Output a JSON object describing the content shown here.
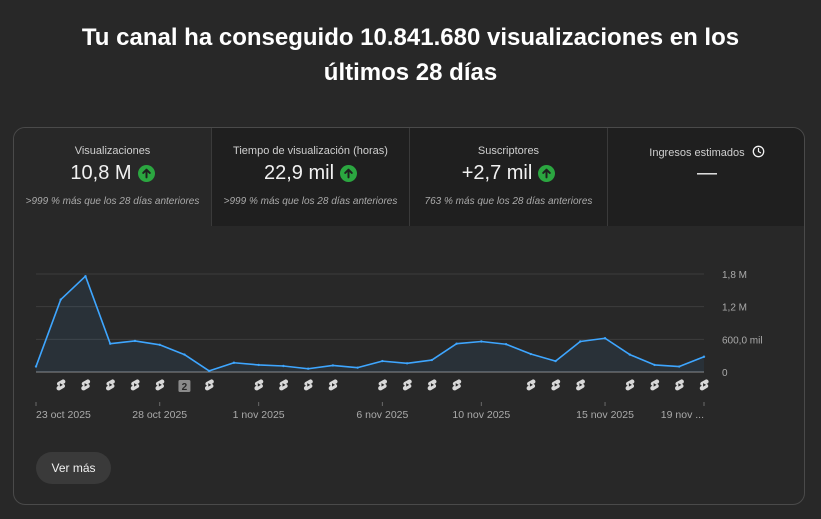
{
  "headline": {
    "line1": "Tu canal ha conseguido 10.841.680 visualizaciones en los",
    "line2": "últimos 28 días"
  },
  "tabs": [
    {
      "label": "Visualizaciones",
      "value": "10,8 M",
      "trend": "up",
      "sub": ">999 % más que los 28 días anteriores"
    },
    {
      "label": "Tiempo de visualización (horas)",
      "value": "22,9 mil",
      "trend": "up",
      "sub": ">999 % más que los 28 días anteriores"
    },
    {
      "label": "Suscriptores",
      "value": "+2,7 mil",
      "trend": "up",
      "sub": "763 % más que los 28 días anteriores"
    },
    {
      "label": "Ingresos estimados",
      "value": "—",
      "trend": "none",
      "sub": ""
    }
  ],
  "chart_data": {
    "type": "area",
    "x": [
      "23 oct 2025",
      "24 oct",
      "25 oct",
      "26 oct",
      "27 oct",
      "28 oct 2025",
      "29 oct",
      "30 oct",
      "31 oct",
      "1 nov 2025",
      "2 nov",
      "3 nov",
      "4 nov",
      "5 nov",
      "6 nov 2025",
      "7 nov",
      "8 nov",
      "9 nov",
      "10 nov 2025",
      "11 nov",
      "12 nov",
      "13 nov",
      "14 nov",
      "15 nov 2025",
      "16 nov",
      "17 nov",
      "18 nov",
      "19 nov"
    ],
    "values": [
      100000,
      1330000,
      1760000,
      520000,
      570000,
      500000,
      320000,
      20000,
      170000,
      130000,
      110000,
      60000,
      120000,
      80000,
      200000,
      160000,
      220000,
      520000,
      560000,
      510000,
      330000,
      200000,
      560000,
      620000,
      320000,
      130000,
      100000,
      280000
    ],
    "ylim": [
      0,
      1800000
    ],
    "yticks": [
      {
        "value": 1800000,
        "label": "1,8 M"
      },
      {
        "value": 1200000,
        "label": "1,2 M"
      },
      {
        "value": 600000,
        "label": "600,0 mil"
      },
      {
        "value": 0,
        "label": "0"
      }
    ],
    "xticks": [
      {
        "index": 0,
        "label": "23 oct 2025"
      },
      {
        "index": 5,
        "label": "28 oct 2025"
      },
      {
        "index": 9,
        "label": "1 nov 2025"
      },
      {
        "index": 14,
        "label": "6 nov 2025"
      },
      {
        "index": 18,
        "label": "10 nov 2025"
      },
      {
        "index": 23,
        "label": "15 nov 2025"
      },
      {
        "index": 27,
        "label": "19 nov ..."
      }
    ],
    "markers": [
      {
        "index": 1,
        "kind": "short"
      },
      {
        "index": 2,
        "kind": "short"
      },
      {
        "index": 3,
        "kind": "short"
      },
      {
        "index": 4,
        "kind": "short"
      },
      {
        "index": 5,
        "kind": "short"
      },
      {
        "index": 6,
        "kind": "count",
        "label": "2"
      },
      {
        "index": 7,
        "kind": "short"
      },
      {
        "index": 9,
        "kind": "short"
      },
      {
        "index": 10,
        "kind": "short"
      },
      {
        "index": 11,
        "kind": "short"
      },
      {
        "index": 12,
        "kind": "short"
      },
      {
        "index": 14,
        "kind": "short"
      },
      {
        "index": 15,
        "kind": "short"
      },
      {
        "index": 16,
        "kind": "short"
      },
      {
        "index": 17,
        "kind": "short"
      },
      {
        "index": 20,
        "kind": "short"
      },
      {
        "index": 21,
        "kind": "short"
      },
      {
        "index": 22,
        "kind": "short"
      },
      {
        "index": 24,
        "kind": "short"
      },
      {
        "index": 25,
        "kind": "short"
      },
      {
        "index": 26,
        "kind": "short"
      },
      {
        "index": 27,
        "kind": "short"
      }
    ],
    "line_color": "#3ea6ff",
    "grid": true
  },
  "more_button": {
    "label": "Ver más"
  }
}
